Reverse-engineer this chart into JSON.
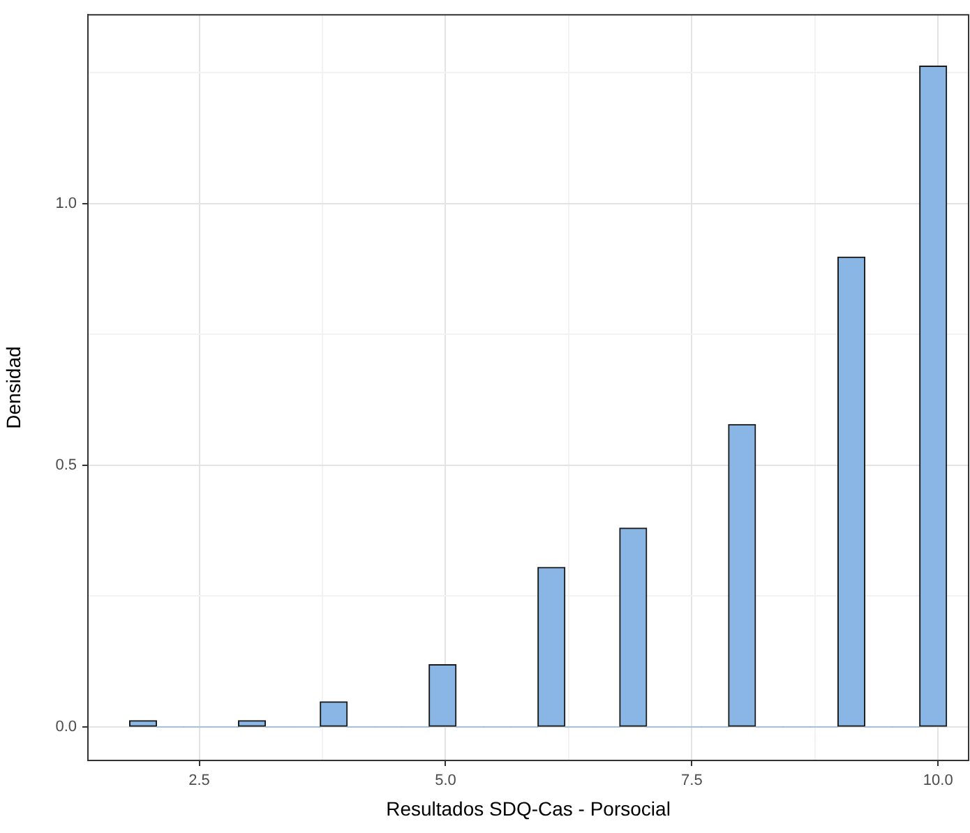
{
  "chart_data": {
    "type": "histogram",
    "xlabel": "Resultados SDQ-Cas - Porsocial",
    "ylabel": "Densidad",
    "bins": [
      1.79,
      2.07,
      2.34,
      2.62,
      2.9,
      3.17,
      3.45,
      3.73,
      4.0,
      4.28,
      4.56,
      4.83,
      5.11,
      5.39,
      5.66,
      5.94,
      6.21,
      6.49,
      6.77,
      7.04,
      7.32,
      7.6,
      7.87,
      8.15,
      8.43,
      8.7,
      8.98,
      9.26,
      9.53,
      9.81,
      10.09
    ],
    "values": [
      0.012,
      0,
      0,
      0,
      0.012,
      0,
      0,
      0.048,
      0,
      0,
      0,
      0.119,
      0,
      0,
      0,
      0.305,
      0,
      0,
      0.38,
      0,
      0,
      0,
      0.578,
      0,
      0,
      0,
      0.898,
      0,
      0,
      1.263
    ],
    "color": "#89b6e4",
    "xlim": [
      1.37,
      10.31
    ],
    "ylim": [
      -0.064,
      1.361
    ],
    "xticks": [
      {
        "value": 2.5,
        "label": "2.5"
      },
      {
        "value": 3.75,
        "label": null
      },
      {
        "value": 5,
        "label": "5.0"
      },
      {
        "value": 6.25,
        "label": null
      },
      {
        "value": 7.5,
        "label": "7.5"
      },
      {
        "value": 8.75,
        "label": null
      },
      {
        "value": 10,
        "label": "10.0"
      }
    ],
    "yticks": [
      {
        "value": 0,
        "label": "0.0"
      },
      {
        "value": 0.25,
        "label": null
      },
      {
        "value": 0.5,
        "label": "0.5"
      },
      {
        "value": 0.75,
        "label": null
      },
      {
        "value": 1,
        "label": "1.0"
      },
      {
        "value": 1.25,
        "label": null
      }
    ],
    "grid": true,
    "legend": false
  }
}
